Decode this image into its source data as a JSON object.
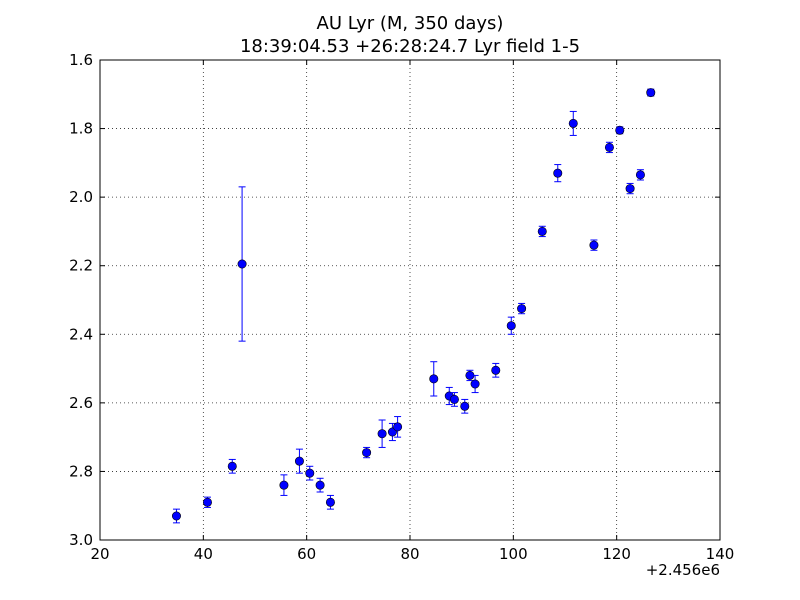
{
  "chart_data": {
    "type": "scatter",
    "title": "AU Lyr (M, 350 days)",
    "subtitle": "18:39:04.53 +26:28:24.7 Lyr field 1-5",
    "xlabel": "",
    "ylabel": "",
    "x_offset_label": "+2.456e6",
    "xlim": [
      20,
      140
    ],
    "ylim": [
      3.0,
      1.6
    ],
    "y_inverted": true,
    "grid": true,
    "x_ticks": [
      20,
      40,
      60,
      80,
      100,
      120,
      140
    ],
    "x_tick_labels": [
      "20",
      "40",
      "60",
      "80",
      "100",
      "120",
      "140"
    ],
    "y_ticks": [
      1.6,
      1.8,
      2.0,
      2.2,
      2.4,
      2.6,
      2.8,
      3.0
    ],
    "y_tick_labels": [
      "1.6",
      "1.8",
      "2.0",
      "2.2",
      "2.4",
      "2.6",
      "2.8",
      "3.0"
    ],
    "colors": {
      "marker": "#0000ff",
      "errorbar": "#0000ff"
    },
    "series": [
      {
        "points": [
          {
            "x": 34.8,
            "y": 2.93,
            "err": 0.02
          },
          {
            "x": 40.8,
            "y": 2.89,
            "err": 0.015
          },
          {
            "x": 45.6,
            "y": 2.785,
            "err": 0.02
          },
          {
            "x": 47.5,
            "y": 2.195,
            "err": 0.225
          },
          {
            "x": 55.6,
            "y": 2.84,
            "err": 0.03
          },
          {
            "x": 58.6,
            "y": 2.77,
            "err": 0.035
          },
          {
            "x": 60.6,
            "y": 2.805,
            "err": 0.02
          },
          {
            "x": 62.6,
            "y": 2.84,
            "err": 0.02
          },
          {
            "x": 64.6,
            "y": 2.89,
            "err": 0.02
          },
          {
            "x": 71.6,
            "y": 2.745,
            "err": 0.015
          },
          {
            "x": 74.6,
            "y": 2.69,
            "err": 0.04
          },
          {
            "x": 76.6,
            "y": 2.685,
            "err": 0.025
          },
          {
            "x": 77.6,
            "y": 2.67,
            "err": 0.03
          },
          {
            "x": 84.6,
            "y": 2.53,
            "err": 0.05
          },
          {
            "x": 87.6,
            "y": 2.58,
            "err": 0.025
          },
          {
            "x": 88.6,
            "y": 2.59,
            "err": 0.02
          },
          {
            "x": 90.6,
            "y": 2.61,
            "err": 0.02
          },
          {
            "x": 91.6,
            "y": 2.52,
            "err": 0.015
          },
          {
            "x": 92.6,
            "y": 2.545,
            "err": 0.025
          },
          {
            "x": 96.6,
            "y": 2.505,
            "err": 0.02
          },
          {
            "x": 99.6,
            "y": 2.375,
            "err": 0.025
          },
          {
            "x": 101.6,
            "y": 2.325,
            "err": 0.015
          },
          {
            "x": 105.6,
            "y": 2.1,
            "err": 0.015
          },
          {
            "x": 108.6,
            "y": 1.93,
            "err": 0.025
          },
          {
            "x": 111.6,
            "y": 1.785,
            "err": 0.035
          },
          {
            "x": 115.6,
            "y": 2.14,
            "err": 0.015
          },
          {
            "x": 118.6,
            "y": 1.855,
            "err": 0.015
          },
          {
            "x": 120.6,
            "y": 1.805,
            "err": 0.01
          },
          {
            "x": 122.6,
            "y": 1.975,
            "err": 0.015
          },
          {
            "x": 124.6,
            "y": 1.935,
            "err": 0.015
          },
          {
            "x": 126.6,
            "y": 1.695,
            "err": 0.01
          }
        ]
      }
    ]
  }
}
